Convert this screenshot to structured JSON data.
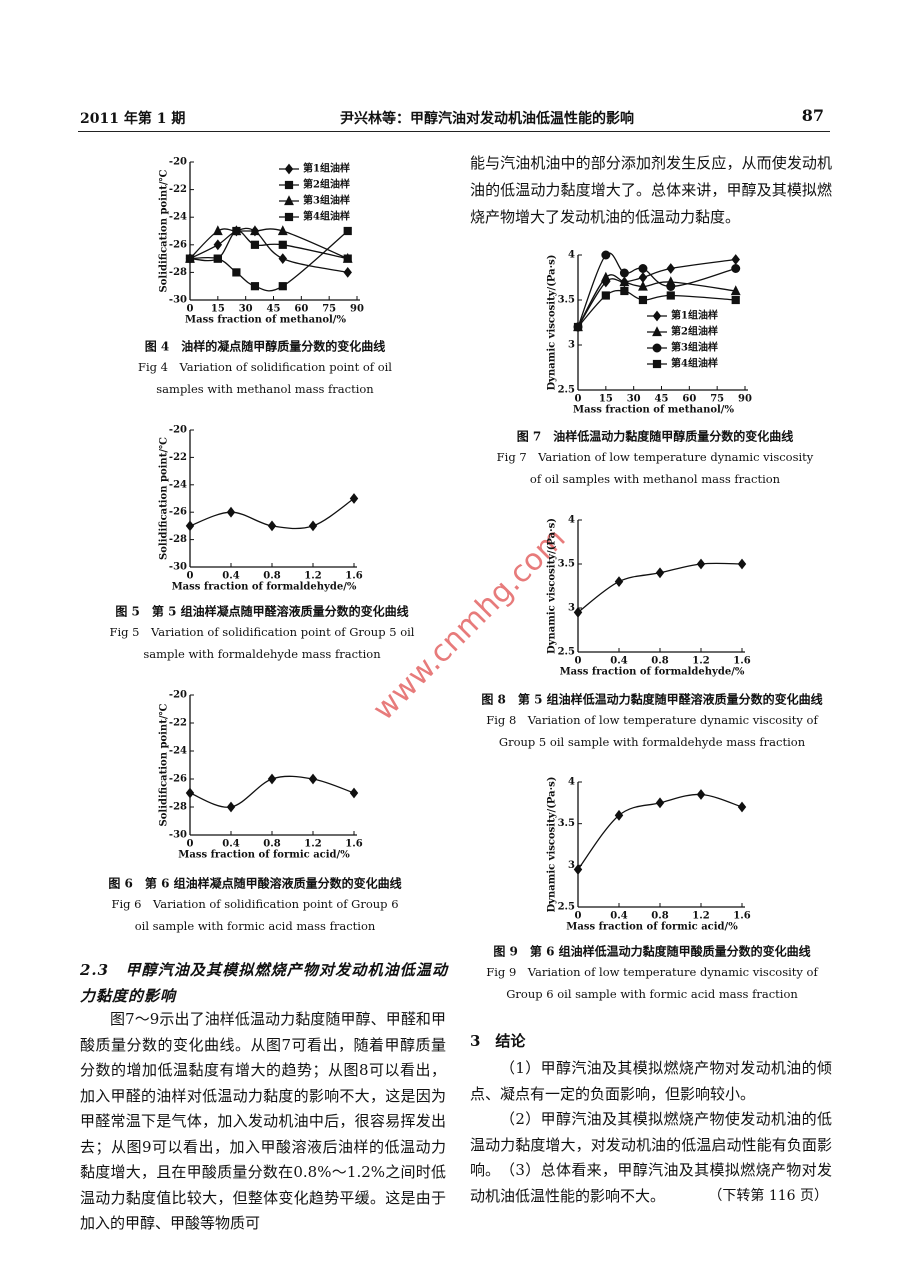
{
  "header": {
    "issue": "2011 年第 1 期",
    "title": "尹兴林等：甲醇汽油对发动机油低温性能的影响",
    "page": "87"
  },
  "watermark": "www.cnmhg.com",
  "chart_data": [
    {
      "type": "line",
      "ylabel": "Solidification point/℃",
      "xlabel": "Mass fraction of methanol/%",
      "x": [
        0,
        15,
        25,
        35,
        50,
        85
      ],
      "xlim": [
        0,
        90
      ],
      "xticks": [
        0,
        15,
        30,
        45,
        60,
        75,
        90
      ],
      "ylim": [
        -30,
        -20
      ],
      "yticks": [
        -30,
        -28,
        -26,
        -24,
        -22,
        -20
      ],
      "legend": "upper right",
      "series": [
        {
          "name": "第1组油样",
          "marker": "diamond",
          "color": "#111111",
          "values": [
            -27,
            -26,
            -25,
            -25,
            -27,
            -28
          ]
        },
        {
          "name": "第2组油样",
          "marker": "square",
          "color": "#111111",
          "values": [
            -27,
            -27,
            -25,
            -26,
            -26,
            -27
          ]
        },
        {
          "name": "第3组油样",
          "marker": "triangle",
          "color": "#111111",
          "values": [
            -27,
            -25,
            -25,
            -25,
            -25,
            -27
          ]
        },
        {
          "name": "第4组油样",
          "marker": "square",
          "color": "#111111",
          "values": [
            -27,
            -27,
            -28,
            -29,
            -29,
            -25
          ]
        }
      ],
      "caption_cn": "图 4　油样的凝点随甲醇质量分数的变化曲线",
      "caption_en": [
        "Fig 4　Variation of solidification point of oil",
        "samples with methanol mass fraction"
      ]
    },
    {
      "type": "line",
      "ylabel": "Solidification point/℃",
      "xlabel": "Mass fraction of formaldehyde/%",
      "x": [
        0,
        0.4,
        0.8,
        1.2,
        1.6
      ],
      "xlim": [
        0,
        1.6
      ],
      "xticks": [
        0,
        0.4,
        0.8,
        1.2,
        1.6
      ],
      "ylim": [
        -30,
        -20
      ],
      "yticks": [
        -30,
        -28,
        -26,
        -24,
        -22,
        -20
      ],
      "marker": "diamond",
      "color": "#111111",
      "values": [
        -27,
        -26,
        -27,
        -27,
        -25
      ],
      "caption_cn": "图 5　第 5 组油样凝点随甲醛溶液质量分数的变化曲线",
      "caption_en": [
        "Fig 5　Variation of solidification point of Group 5 oil",
        "sample with formaldehyde mass fraction"
      ]
    },
    {
      "type": "line",
      "ylabel": "Solidification point/℃",
      "xlabel": "Mass fraction of formic acid/%",
      "x": [
        0,
        0.4,
        0.8,
        1.2,
        1.6
      ],
      "xlim": [
        0,
        1.6
      ],
      "xticks": [
        0,
        0.4,
        0.8,
        1.2,
        1.6
      ],
      "ylim": [
        -30,
        -20
      ],
      "yticks": [
        -30,
        -28,
        -26,
        -24,
        -22,
        -20
      ],
      "marker": "diamond",
      "color": "#111111",
      "values": [
        -27,
        -28,
        -26,
        -26,
        -27
      ],
      "caption_cn": "图 6　第 6 组油样凝点随甲酸溶液质量分数的变化曲线",
      "caption_en": [
        "Fig 6　Variation of solidification point of Group 6",
        "oil sample with formic acid mass fraction"
      ]
    },
    {
      "type": "line",
      "ylabel": "Dynamic viscosity/(Pa·s)",
      "xlabel": "Mass fraction of methanol/%",
      "x": [
        0,
        15,
        25,
        35,
        50,
        85
      ],
      "xlim": [
        0,
        90
      ],
      "xticks": [
        0,
        15,
        30,
        45,
        60,
        75,
        90
      ],
      "ylim": [
        2.5,
        4
      ],
      "yticks": [
        2.5,
        3,
        3.5,
        4
      ],
      "legend": "center right",
      "series": [
        {
          "name": "第1组油样",
          "marker": "diamond",
          "color": "#111111",
          "values": [
            3.2,
            3.7,
            3.7,
            3.75,
            3.85,
            3.95
          ]
        },
        {
          "name": "第2组油样",
          "marker": "triangle",
          "color": "#111111",
          "values": [
            3.2,
            3.75,
            3.7,
            3.65,
            3.7,
            3.6
          ]
        },
        {
          "name": "第3组油样",
          "marker": "circle",
          "color": "#111111",
          "values": [
            3.2,
            4,
            3.8,
            3.85,
            3.65,
            3.85
          ]
        },
        {
          "name": "第4组油样",
          "marker": "square",
          "color": "#111111",
          "values": [
            3.2,
            3.55,
            3.6,
            3.5,
            3.55,
            3.5
          ]
        }
      ],
      "caption_cn": "图 7　油样低温动力黏度随甲醇质量分数的变化曲线",
      "caption_en": [
        "Fig 7　Variation of low temperature dynamic viscosity",
        "of oil samples with methanol mass fraction"
      ]
    },
    {
      "type": "line",
      "ylabel": "Dynamic viscosity/(Pa·s)",
      "xlabel": "Mass fraction of formaldehyde/%",
      "x": [
        0,
        0.4,
        0.8,
        1.2,
        1.6
      ],
      "xlim": [
        0,
        1.6
      ],
      "xticks": [
        0,
        0.4,
        0.8,
        1.2,
        1.6
      ],
      "ylim": [
        2.5,
        4
      ],
      "yticks": [
        2.5,
        3,
        3.5,
        4
      ],
      "marker": "diamond",
      "color": "#111111",
      "values": [
        2.95,
        3.3,
        3.4,
        3.5,
        3.5
      ],
      "caption_cn": "图 8　第 5 组油样低温动力黏度随甲醛溶液质量分数的变化曲线",
      "caption_en": [
        "Fig 8　Variation of low temperature dynamic viscosity of",
        "Group 5 oil sample with formaldehyde mass fraction"
      ]
    },
    {
      "type": "line",
      "ylabel": "Dynamic viscosity/(Pa·s)",
      "xlabel": "Mass fraction of formic acid/%",
      "x": [
        0,
        0.4,
        0.8,
        1.2,
        1.6
      ],
      "xlim": [
        0,
        1.6
      ],
      "xticks": [
        0,
        0.4,
        0.8,
        1.2,
        1.6
      ],
      "ylim": [
        2.5,
        4
      ],
      "yticks": [
        2.5,
        3,
        3.5,
        4
      ],
      "marker": "diamond",
      "color": "#111111",
      "values": [
        2.95,
        3.6,
        3.75,
        3.85,
        3.7
      ],
      "caption_cn": "图 9　第 6 组油样低温动力黏度随甲酸质量分数的变化曲线",
      "caption_en": [
        "Fig 9　Variation of low temperature dynamic viscosity of",
        "Group 6 oil sample with formic acid mass fraction"
      ]
    }
  ],
  "left_text": {
    "section_heading": "2.3　甲醇汽油及其模拟燃烧产物对发动机油低温动力黏度的影响",
    "paragraph": "图7～9示出了油样低温动力黏度随甲醇、甲醛和甲酸质量分数的变化曲线。从图7可看出，随着甲醇质量分数的增加低温黏度有增大的趋势；从图8可以看出，加入甲醛的油样对低温动力黏度的影响不大，这是因为甲醛常温下是气体，加入发动机油中后，很容易挥发出去；从图9可以看出，加入甲酸溶液后油样的低温动力黏度增大，且在甲酸质量分数在0.8%～1.2%之间时低温动力黏度值比较大，但整体变化趋势平缓。这是由于加入的甲醇、甲酸等物质可"
  },
  "right_text": {
    "paragraph": "能与汽油机油中的部分添加剂发生反应，从而使发动机油的低温动力黏度增大了。总体来讲，甲醇及其模拟燃烧产物增大了发动机油的低温动力黏度。",
    "section_heading": "3　结论",
    "items": [
      "（1）甲醇汽油及其模拟燃烧产物对发动机油的倾点、凝点有一定的负面影响，但影响较小。",
      "（2）甲醇汽油及其模拟燃烧产物使发动机油的低温动力黏度增大，对发动机油的低温启动性能有负面影响。",
      "（3）总体看来，甲醇汽油及其模拟燃烧产物对发动机油低温性能的影响不大。"
    ],
    "footnote": "（下转第 116 页）"
  }
}
